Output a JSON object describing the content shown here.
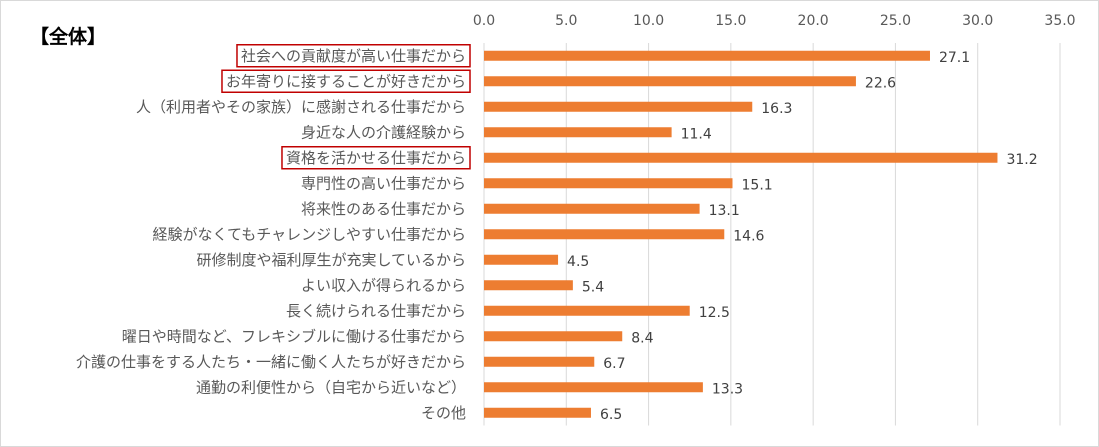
{
  "panel_title": "【全体】",
  "colors": {
    "bar": "#ED7D31",
    "highlight": "#C00000",
    "grid": "#D9D9D9",
    "text": "#595959"
  },
  "chart_data": {
    "type": "bar",
    "orientation": "horizontal",
    "title": "",
    "xlabel": "",
    "ylabel": "",
    "xlim": [
      0,
      35
    ],
    "x_ticks": [
      "0.0",
      "5.0",
      "10.0",
      "15.0",
      "20.0",
      "25.0",
      "30.0",
      "35.0"
    ],
    "x_axis_position": "top",
    "grid": true,
    "categories": [
      "社会への貢献度が高い仕事だから",
      "お年寄りに接することが好きだから",
      "人（利用者やその家族）に感謝される仕事だから",
      "身近な人の介護経験から",
      "資格を活かせる仕事だから",
      "専門性の高い仕事だから",
      "将来性のある仕事だから",
      "経験がなくてもチャレンジしやすい仕事だから",
      "研修制度や福利厚生が充実しているから",
      "よい収入が得られるから",
      "長く続けられる仕事だから",
      "曜日や時間など、フレキシブルに働ける仕事だから",
      "介護の仕事をする人たち・一緒に働く人たちが好きだから",
      "通勤の利便性から（自宅から近いなど）",
      "その他"
    ],
    "values": [
      27.1,
      22.6,
      16.3,
      11.4,
      31.2,
      15.1,
      13.1,
      14.6,
      4.5,
      5.4,
      12.5,
      8.4,
      6.7,
      13.3,
      6.5
    ],
    "value_labels": [
      "27.1",
      "22.6",
      "16.3",
      "11.4",
      "31.2",
      "15.1",
      "13.1",
      "14.6",
      "4.5",
      "5.4",
      "12.5",
      "8.4",
      "6.7",
      "13.3",
      "6.5"
    ],
    "highlighted_categories": [
      0,
      1,
      4
    ]
  }
}
